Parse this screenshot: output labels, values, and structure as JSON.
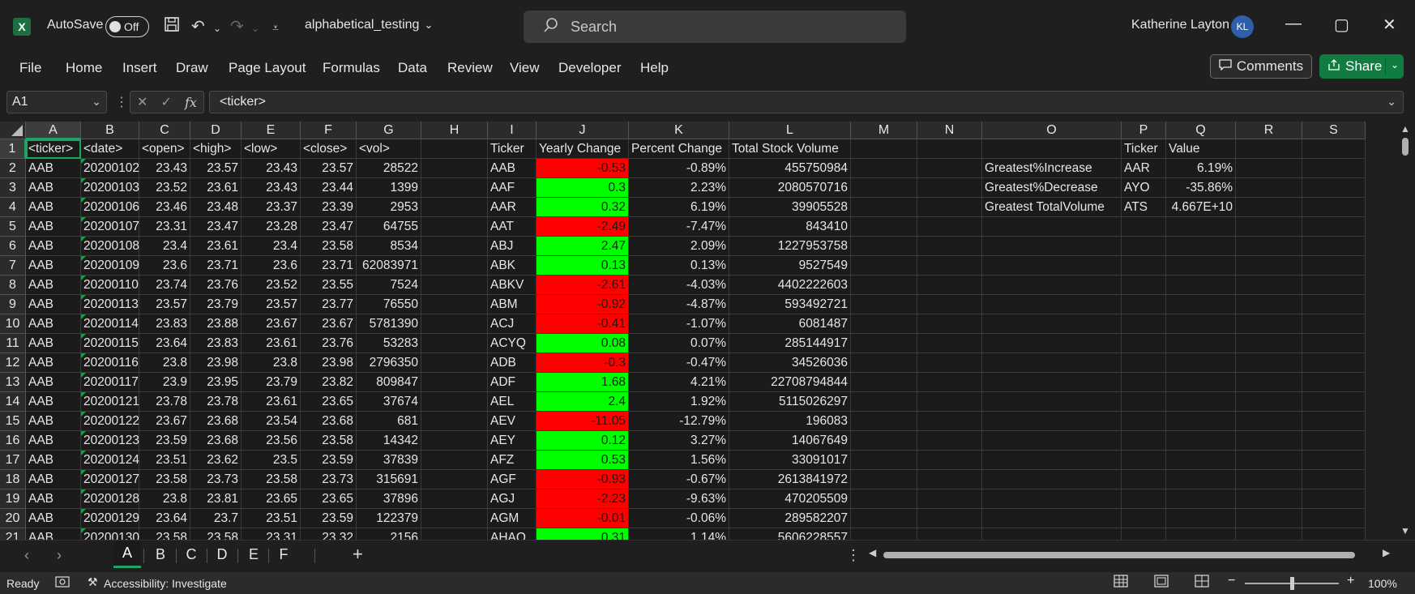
{
  "titlebar": {
    "app_icon": "excel-icon",
    "autosave_label": "AutoSave",
    "autosave_state": "Off",
    "doc_title": "alphabetical_testing",
    "search_placeholder": "Search",
    "user_name": "Katherine Layton",
    "user_initials": "KL"
  },
  "menu": {
    "items": [
      "File",
      "Home",
      "Insert",
      "Draw",
      "Page Layout",
      "Formulas",
      "Data",
      "Review",
      "View",
      "Developer",
      "Help"
    ],
    "comments_label": "Comments",
    "share_label": "Share"
  },
  "formula_bar": {
    "name_box": "A1",
    "formula": "<ticker>"
  },
  "grid": {
    "columns": [
      "A",
      "B",
      "C",
      "D",
      "E",
      "F",
      "G",
      "H",
      "I",
      "J",
      "K",
      "L",
      "M",
      "N",
      "O",
      "P",
      "Q",
      "R",
      "S"
    ],
    "rows": [
      "1",
      "2",
      "3",
      "4",
      "5",
      "6",
      "7",
      "8",
      "9",
      "10",
      "11",
      "12",
      "13",
      "14",
      "15",
      "16",
      "17",
      "18",
      "19",
      "20",
      "21"
    ],
    "headers": {
      "A": "<ticker>",
      "B": "<date>",
      "C": "<open>",
      "D": "<high>",
      "E": "<low>",
      "F": "<close>",
      "G": "<vol>",
      "I": "Ticker",
      "J": "Yearly Change",
      "K": "Percent Change",
      "L": "Total Stock Volume",
      "P": "Ticker",
      "Q": "Value"
    },
    "raw_rows": [
      [
        "AAB",
        "20200102",
        "23.43",
        "23.57",
        "23.43",
        "23.57",
        "28522"
      ],
      [
        "AAB",
        "20200103",
        "23.52",
        "23.61",
        "23.43",
        "23.44",
        "1399"
      ],
      [
        "AAB",
        "20200106",
        "23.46",
        "23.48",
        "23.37",
        "23.39",
        "2953"
      ],
      [
        "AAB",
        "20200107",
        "23.31",
        "23.47",
        "23.28",
        "23.47",
        "64755"
      ],
      [
        "AAB",
        "20200108",
        "23.4",
        "23.61",
        "23.4",
        "23.58",
        "8534"
      ],
      [
        "AAB",
        "20200109",
        "23.6",
        "23.71",
        "23.6",
        "23.71",
        "62083971"
      ],
      [
        "AAB",
        "20200110",
        "23.74",
        "23.76",
        "23.52",
        "23.55",
        "7524"
      ],
      [
        "AAB",
        "20200113",
        "23.57",
        "23.79",
        "23.57",
        "23.77",
        "76550"
      ],
      [
        "AAB",
        "20200114",
        "23.83",
        "23.88",
        "23.67",
        "23.67",
        "5781390"
      ],
      [
        "AAB",
        "20200115",
        "23.64",
        "23.83",
        "23.61",
        "23.76",
        "53283"
      ],
      [
        "AAB",
        "20200116",
        "23.8",
        "23.98",
        "23.8",
        "23.98",
        "2796350"
      ],
      [
        "AAB",
        "20200117",
        "23.9",
        "23.95",
        "23.79",
        "23.82",
        "809847"
      ],
      [
        "AAB",
        "20200121",
        "23.78",
        "23.78",
        "23.61",
        "23.65",
        "37674"
      ],
      [
        "AAB",
        "20200122",
        "23.67",
        "23.68",
        "23.54",
        "23.68",
        "681"
      ],
      [
        "AAB",
        "20200123",
        "23.59",
        "23.68",
        "23.56",
        "23.58",
        "14342"
      ],
      [
        "AAB",
        "20200124",
        "23.51",
        "23.62",
        "23.5",
        "23.59",
        "37839"
      ],
      [
        "AAB",
        "20200127",
        "23.58",
        "23.73",
        "23.58",
        "23.73",
        "315691"
      ],
      [
        "AAB",
        "20200128",
        "23.8",
        "23.81",
        "23.65",
        "23.65",
        "37896"
      ],
      [
        "AAB",
        "20200129",
        "23.64",
        "23.7",
        "23.51",
        "23.59",
        "122379"
      ],
      [
        "AAB",
        "20200130",
        "23.58",
        "23.58",
        "23.31",
        "23.32",
        "2156"
      ]
    ],
    "summary_rows": [
      [
        "AAB",
        "-0.53",
        "-0.89%",
        "455750984"
      ],
      [
        "AAF",
        "0.3",
        "2.23%",
        "2080570716"
      ],
      [
        "AAR",
        "0.32",
        "6.19%",
        "39905528"
      ],
      [
        "AAT",
        "-2.49",
        "-7.47%",
        "843410"
      ],
      [
        "ABJ",
        "2.47",
        "2.09%",
        "1227953758"
      ],
      [
        "ABK",
        "0.13",
        "0.13%",
        "9527549"
      ],
      [
        "ABKV",
        "-2.61",
        "-4.03%",
        "4402222603"
      ],
      [
        "ABM",
        "-0.92",
        "-4.87%",
        "593492721"
      ],
      [
        "ACJ",
        "-0.41",
        "-1.07%",
        "6081487"
      ],
      [
        "ACYQ",
        "0.08",
        "0.07%",
        "285144917"
      ],
      [
        "ADB",
        "-0.3",
        "-0.47%",
        "34526036"
      ],
      [
        "ADF",
        "1.68",
        "4.21%",
        "22708794844"
      ],
      [
        "AEL",
        "2.4",
        "1.92%",
        "5115026297"
      ],
      [
        "AEV",
        "-11.05",
        "-12.79%",
        "196083"
      ],
      [
        "AEY",
        "0.12",
        "3.27%",
        "14067649"
      ],
      [
        "AFZ",
        "0.53",
        "1.56%",
        "33091017"
      ],
      [
        "AGF",
        "-0.93",
        "-0.67%",
        "2613841972"
      ],
      [
        "AGJ",
        "-2.23",
        "-9.63%",
        "470205509"
      ],
      [
        "AGM",
        "-0.01",
        "-0.06%",
        "289582207"
      ],
      [
        "AHAQ",
        "0.31",
        "1.14%",
        "5606228557"
      ]
    ],
    "greatest": [
      [
        "Greatest%Increase",
        "AAR",
        "6.19%"
      ],
      [
        "Greatest%Decrease",
        "AYO",
        "-35.86%"
      ],
      [
        "Greatest TotalVolume",
        "ATS",
        "4.667E+10"
      ]
    ],
    "colors": {
      "negative": "#ff0000",
      "positive": "#00ff00",
      "accent": "#21a366"
    }
  },
  "sheets": {
    "tabs": [
      "A",
      "B",
      "C",
      "D",
      "E",
      "F"
    ],
    "active": "A"
  },
  "status": {
    "ready": "Ready",
    "accessibility": "Accessibility: Investigate",
    "zoom": "100%"
  }
}
